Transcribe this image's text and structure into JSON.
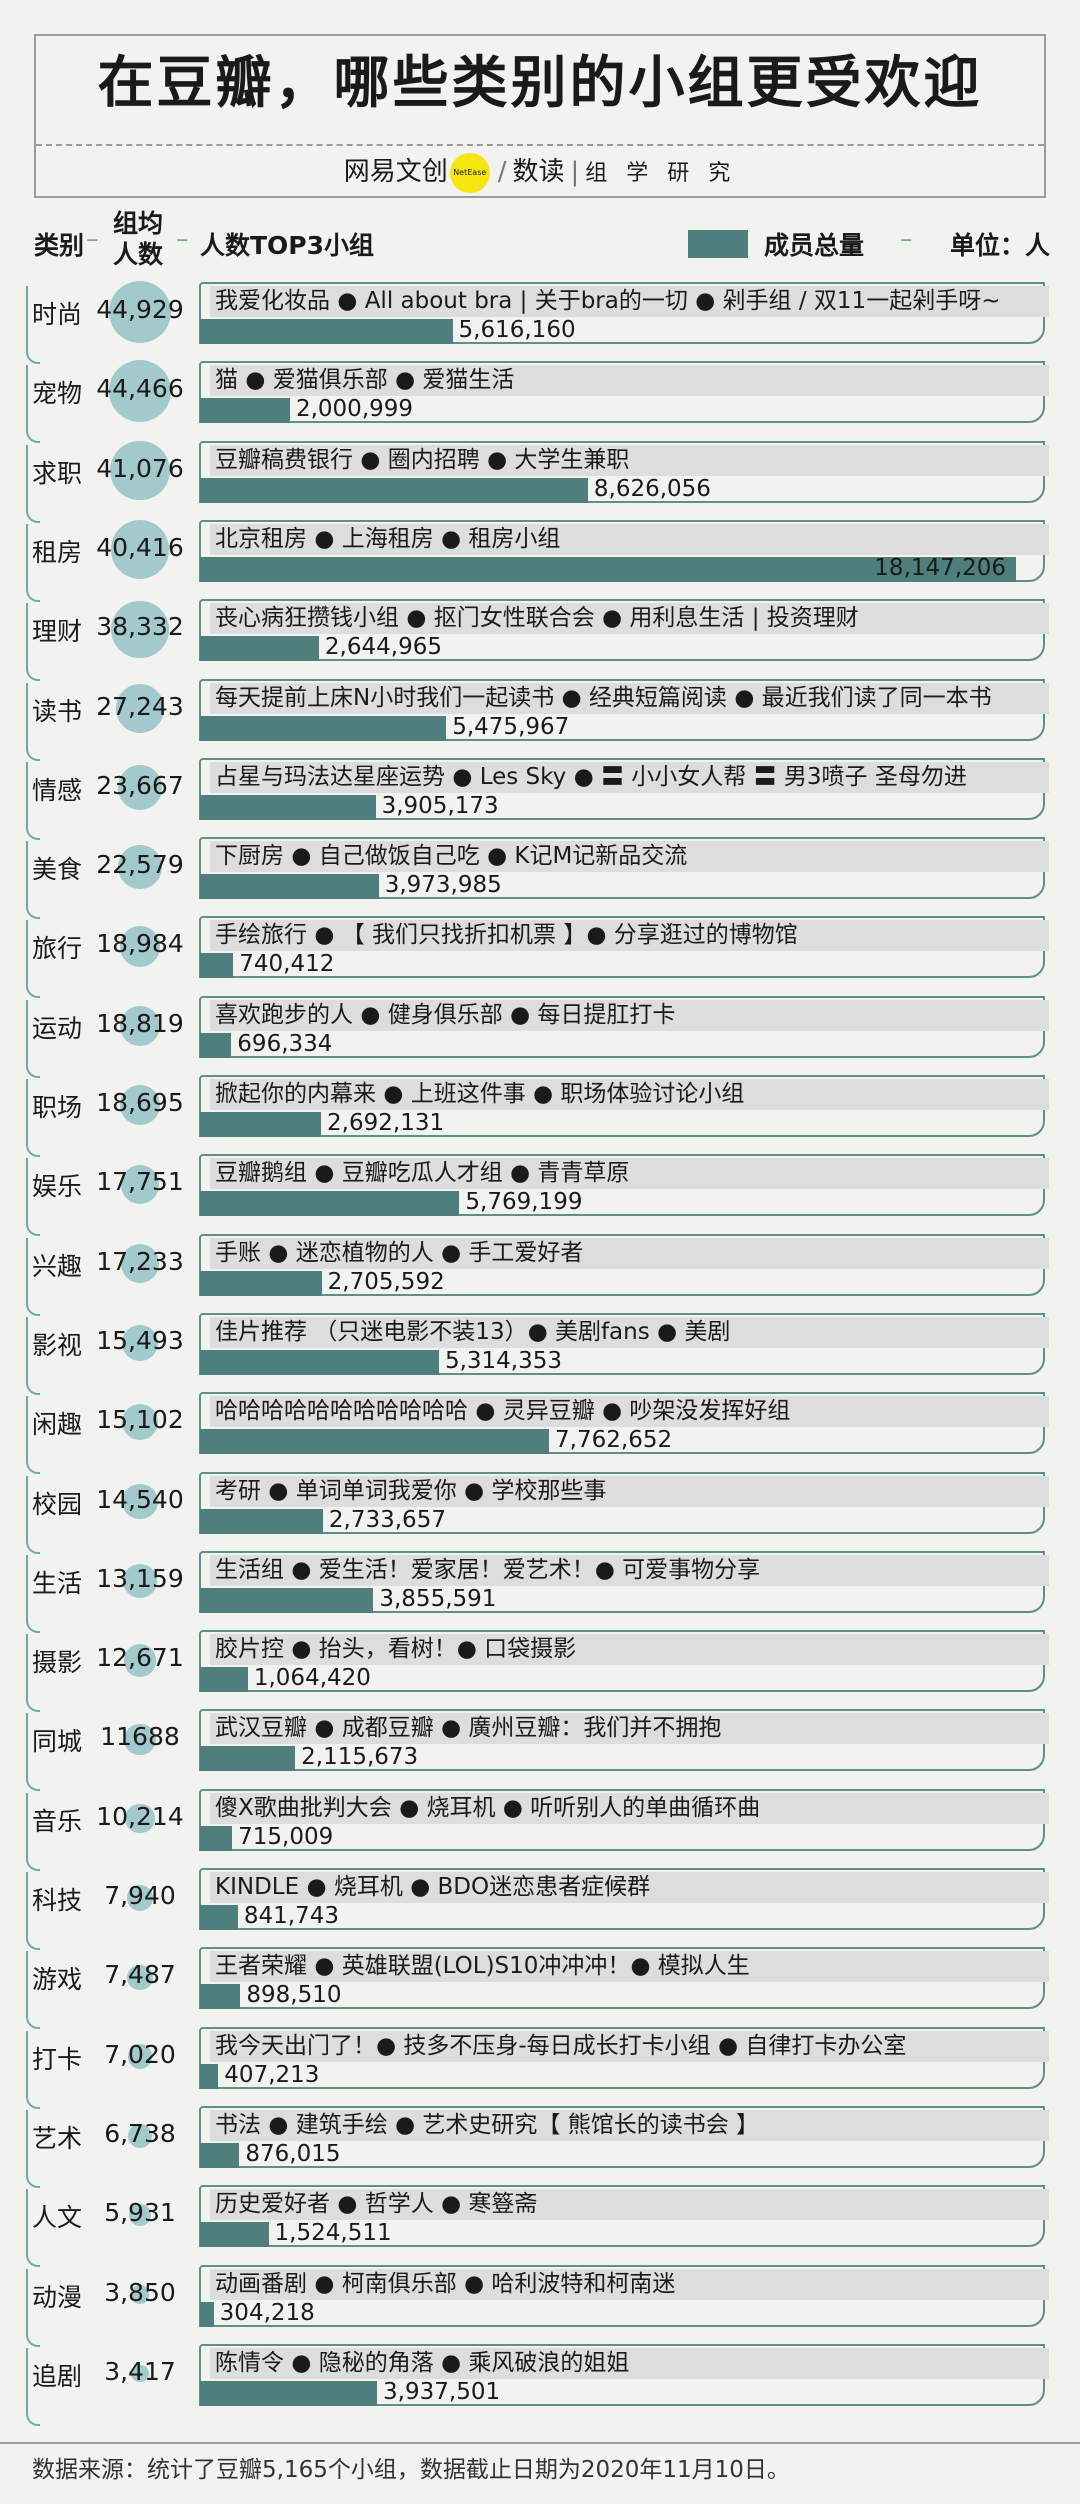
{
  "title": "在豆瓣，哪些类别的小组更受欢迎",
  "brand": {
    "netease": "网易文创",
    "netease_mark": "NetEase",
    "slash": "/",
    "shudu": "数读",
    "studio": "组 学 研 究"
  },
  "header": {
    "category": "类别",
    "avg_line1": "组均",
    "avg_line2": "人数",
    "dash": "–",
    "top3": "人数TOP3小组",
    "legend_total": "成员总量",
    "unit": "单位：人"
  },
  "colors": {
    "bar": "#4f7f7c",
    "bubble": "#99c4c7",
    "panel_border": "#5d8f8c",
    "group_bg": "#dddddd"
  },
  "footer": "数据来源：统计了豆瓣5,165个小组，数据截止日期为2020年11月10日。",
  "chart_data": {
    "type": "bar",
    "categories": [
      "时尚",
      "宠物",
      "求职",
      "租房",
      "理财",
      "读书",
      "情感",
      "美食",
      "旅行",
      "运动",
      "职场",
      "娱乐",
      "兴趣",
      "影视",
      "闲趣",
      "校园",
      "生活",
      "摄影",
      "同城",
      "音乐",
      "科技",
      "游戏",
      "打卡",
      "艺术",
      "人文",
      "动漫",
      "追剧"
    ],
    "avg_labels": [
      "44,929",
      "44,466",
      "41,076",
      "40,416",
      "38,332",
      "27,243",
      "23,667",
      "22,579",
      "18,984",
      "18,819",
      "18,695",
      "17,751",
      "17,233",
      "15,493",
      "15,102",
      "14,540",
      "13,159",
      "12,671",
      "11688",
      "10,214",
      "7,940",
      "7,487",
      "7,020",
      "6,738",
      "5,931",
      "3,850",
      "3,417"
    ],
    "avg_values": [
      44929,
      44466,
      41076,
      40416,
      38332,
      27243,
      23667,
      22579,
      18984,
      18819,
      18695,
      17751,
      17233,
      15493,
      15102,
      14540,
      13159,
      12671,
      11688,
      10214,
      7940,
      7487,
      7020,
      6738,
      5931,
      3850,
      3417
    ],
    "top3_groups": [
      "我爱化妆品 ● All about bra | 关于bra的一切 ● 剁手组 / 双11一起剁手呀~",
      "猫 ● 爱猫俱乐部 ● 爱猫生活",
      "豆瓣稿费银行 ● 圈内招聘 ● 大学生兼职",
      "北京租房 ● 上海租房 ● 租房小组",
      "丧心病狂攒钱小组 ● 抠门女性联合会 ● 用利息生活 | 投资理财",
      "每天提前上床N小时我们一起读书 ● 经典短篇阅读 ● 最近我们读了同一本书",
      "占星与玛法达星座运势 ● Les Sky ● 〓 小小女人帮 〓 男3喷子 圣母勿进",
      "下厨房 ● 自己做饭自己吃 ● K记M记新品交流",
      "手绘旅行 ● 【 我们只找折扣机票 】● 分享逛过的博物馆",
      "喜欢跑步的人 ● 健身俱乐部 ● 每日提肛打卡",
      "掀起你的内幕来 ● 上班这件事 ● 职场体验讨论小组",
      "豆瓣鹅组 ● 豆瓣吃瓜人才组 ● 青青草原",
      "手账 ● 迷恋植物的人 ● 手工爱好者",
      "佳片推荐 （只迷电影不装13）● 美剧fans ● 美剧",
      "哈哈哈哈哈哈哈哈哈哈哈 ● 灵异豆瓣 ● 吵架没发挥好组",
      "考研 ● 单词单词我爱你 ● 学校那些事",
      "生活组 ● 爱生活！爱家居！爱艺术！● 可爱事物分享",
      "胶片控 ● 抬头，看树！● 口袋摄影",
      "武汉豆瓣 ● 成都豆瓣 ● 廣州豆瓣：我们并不拥抱",
      "傻X歌曲批判大会 ● 烧耳机 ● 听听别人的单曲循环曲",
      "KINDLE ● 烧耳机 ● BDO迷恋患者症候群",
      "王者荣耀 ● 英雄联盟(LOL)S10冲冲冲！● 模拟人生",
      "我今天出门了！● 技多不压身-每日成长打卡小组 ● 自律打卡办公室",
      "书法 ● 建筑手绘 ● 艺术史研究【 熊馆长的读书会 】",
      "历史爱好者 ● 哲学人 ● 寒簦斋",
      "动画番剧 ● 柯南俱乐部 ● 哈利波特和柯南迷",
      "陈情令 ● 隐秘的角落 ● 乘风破浪的姐姐"
    ],
    "total_labels": [
      "5,616,160",
      "2,000,999",
      "8,626,056",
      "18,147,206",
      "2,644,965",
      "5,475,967",
      "3,905,173",
      "3,973,985",
      "740,412",
      "696,334",
      "2,692,131",
      "5,769,199",
      "2,705,592",
      "5,314,353",
      "7,762,652",
      "2,733,657",
      "3,855,591",
      "1,064,420",
      "2,115,673",
      "715,009",
      "841,743",
      "898,510",
      "407,213",
      "876,015",
      "1,524,511",
      "304,218",
      "3,937,501"
    ],
    "values": [
      5616160,
      2000999,
      8626056,
      18147206,
      2644965,
      5475967,
      3905173,
      3973985,
      740412,
      696334,
      2692131,
      5769199,
      2705592,
      5314353,
      7762652,
      2733657,
      3855591,
      1064420,
      2115673,
      715009,
      841743,
      898510,
      407213,
      876015,
      1524511,
      304218,
      3937501
    ],
    "xlabel": "成员总量",
    "ylabel": "类别",
    "unit": "单位：人"
  }
}
